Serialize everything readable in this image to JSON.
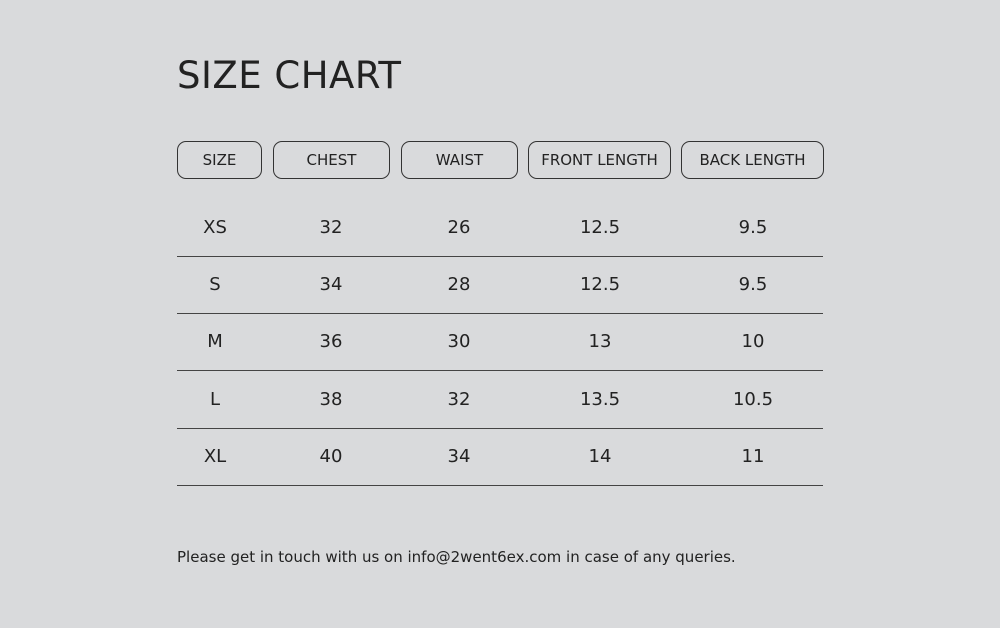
{
  "title": "SIZE CHART",
  "headers": [
    "SIZE",
    "CHEST",
    "WAIST",
    "FRONT LENGTH",
    "BACK LENGTH"
  ],
  "rows": [
    [
      "XS",
      "32",
      "26",
      "12.5",
      "9.5"
    ],
    [
      "S",
      "34",
      "28",
      "12.5",
      "9.5"
    ],
    [
      "M",
      "36",
      "30",
      "13",
      "10"
    ],
    [
      "L",
      "38",
      "32",
      "13.5",
      "10.5"
    ],
    [
      "XL",
      "40",
      "34",
      "14",
      "11"
    ]
  ],
  "note": "Please get in touch with us on info@2went6ex.com in case of any queries.",
  "colors": {
    "background": "#d9dadc",
    "text": "#222222"
  }
}
